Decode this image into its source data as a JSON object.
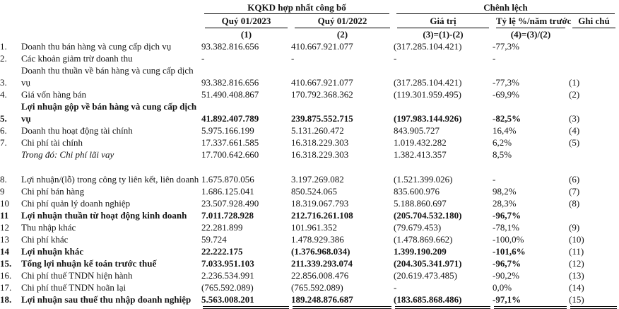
{
  "table": {
    "group_headers": {
      "kqkd": "KQKD hợp nhất công bố",
      "chenh_lech": "Chênh lệch"
    },
    "columns": {
      "q2023": "Quý 01/2023",
      "q2022": "Quý 01/2022",
      "value": "Giá trị",
      "pct": "Tỷ lệ %/năm trước",
      "note": "Ghi chú"
    },
    "formulas": {
      "q2023": "(1)",
      "q2022": "(2)",
      "value": "(3)=(1)-(2)",
      "pct": "(4)=(3)/(2)"
    },
    "rows": [
      {
        "num": "1.",
        "label": "Doanh thu bán hàng và cung cấp dịch vụ",
        "q2023": "93.382.816.656",
        "q2022": "410.667.921.077",
        "value": "(317.285.104.421)",
        "pct": "-77,3%",
        "note": "",
        "style": "normal"
      },
      {
        "num": "2.",
        "label": "Các khoản giảm trừ doanh thu",
        "q2023": "-",
        "q2022": "-",
        "value": "-",
        "pct": "-",
        "note": "",
        "style": "normal"
      },
      {
        "num": "",
        "label": "Doanh thu thuần về bán hàng và cung cấp dịch",
        "q2023": "",
        "q2022": "",
        "value": "",
        "pct": "",
        "note": "",
        "style": "normal"
      },
      {
        "num": "3.",
        "label": "vụ",
        "q2023": "93.382.816.656",
        "q2022": "410.667.921.077",
        "value": "(317.285.104.421)",
        "pct": "-77,3%",
        "note": "(1)",
        "style": "normal"
      },
      {
        "num": "4.",
        "label": "Giá vốn hàng bán",
        "q2023": "51.490.408.867",
        "q2022": "170.792.368.362",
        "value": "(119.301.959.495)",
        "pct": "-69,9%",
        "note": "(2)",
        "style": "normal"
      },
      {
        "num": "",
        "label": "Lợi nhuận gộp về bán hàng và cung cấp dịch",
        "q2023": "",
        "q2022": "",
        "value": "",
        "pct": "",
        "note": "",
        "style": "bold"
      },
      {
        "num": "5.",
        "label": "vụ",
        "q2023": "41.892.407.789",
        "q2022": "239.875.552.715",
        "value": "(197.983.144.926)",
        "pct": "-82,5%",
        "note": "(3)",
        "style": "bold"
      },
      {
        "num": "6.",
        "label": "Doanh thu hoạt động tài chính",
        "q2023": "5.975.166.199",
        "q2022": "5.131.260.472",
        "value": "843.905.727",
        "pct": "16,4%",
        "note": "(4)",
        "style": "normal"
      },
      {
        "num": "7.",
        "label": "Chi phí tài chính",
        "q2023": "17.337.661.585",
        "q2022": "16.318.229.303",
        "value": "1.019.432.282",
        "pct": "6,2%",
        "note": "(5)",
        "style": "normal"
      },
      {
        "num": "",
        "label": "Trong đó: Chi phí lãi vay",
        "q2023": "17.700.642.660",
        "q2022": "16.318.229.303",
        "value": "1.382.413.357",
        "pct": "8,5%",
        "note": "",
        "style": "italic"
      },
      {
        "spacer": true
      },
      {
        "num": "8.",
        "label": "Lợi nhuận/(lỗ) trong công ty liên kết, liên doanh",
        "q2023": "1.675.870.056",
        "q2022": "3.197.269.082",
        "value": "(1.521.399.026)",
        "pct": "-",
        "note": "(6)",
        "style": "normal"
      },
      {
        "num": "9",
        "label": "Chi phí bán hàng",
        "q2023": "1.686.125.041",
        "q2022": "850.524.065",
        "value": "835.600.976",
        "pct": "98,2%",
        "note": "(7)",
        "style": "normal"
      },
      {
        "num": "10",
        "label": "Chi phí quản lý doanh nghiệp",
        "q2023": "23.507.928.490",
        "q2022": "18.319.067.793",
        "value": "5.188.860.697",
        "pct": "28,3%",
        "note": "(8)",
        "style": "normal"
      },
      {
        "num": "11",
        "label": "Lợi nhuận thuần từ hoạt động kinh doanh",
        "q2023": "7.011.728.928",
        "q2022": "212.716.261.108",
        "value": "(205.704.532.180)",
        "pct": "-96,7%",
        "note": "",
        "style": "bold"
      },
      {
        "num": "12",
        "label": "Thu nhập khác",
        "q2023": "22.281.899",
        "q2022": "101.961.352",
        "value": "(79.679.453)",
        "pct": "-78,1%",
        "note": "(9)",
        "style": "normal"
      },
      {
        "num": "13",
        "label": "Chi phí khác",
        "q2023": "59.724",
        "q2022": "1.478.929.386",
        "value": "(1.478.869.662)",
        "pct": "-100,0%",
        "note": "(10)",
        "style": "normal"
      },
      {
        "num": "14",
        "label": "Lợi nhuận khác",
        "q2023": "22.222.175",
        "q2022": "(1.376.968.034)",
        "value": "1.399.190.209",
        "pct": "-101,6%",
        "note": "(11)",
        "style": "bold"
      },
      {
        "num": "15.",
        "label": "Tổng lợi nhuận kế toán trước thuế",
        "q2023": "7.033.951.103",
        "q2022": "211.339.293.074",
        "value": "(204.305.341.971)",
        "pct": "-96,7%",
        "note": "(12)",
        "style": "bold"
      },
      {
        "num": "16.",
        "label": "Chi phí thuế TNDN hiện hành",
        "q2023": "2.236.534.991",
        "q2022": "22.856.008.476",
        "value": "(20.619.473.485)",
        "pct": "-90,2%",
        "note": "(13)",
        "style": "normal"
      },
      {
        "num": "17.",
        "label": "Chi phí thuế TNDN hoãn lại",
        "q2023": "(765.592.089)",
        "q2022": "(765.592.089)",
        "value": "-",
        "pct": "0,0%",
        "note": "(14)",
        "style": "normal"
      },
      {
        "num": "18.",
        "label": "Lợi nhuận sau thuế thu nhập doanh nghiệp",
        "q2023": "5.563.008.201",
        "q2022": "189.248.876.687",
        "value": "(183.685.868.486)",
        "pct": "-97,1%",
        "note": "(15)",
        "style": "bold"
      }
    ]
  }
}
